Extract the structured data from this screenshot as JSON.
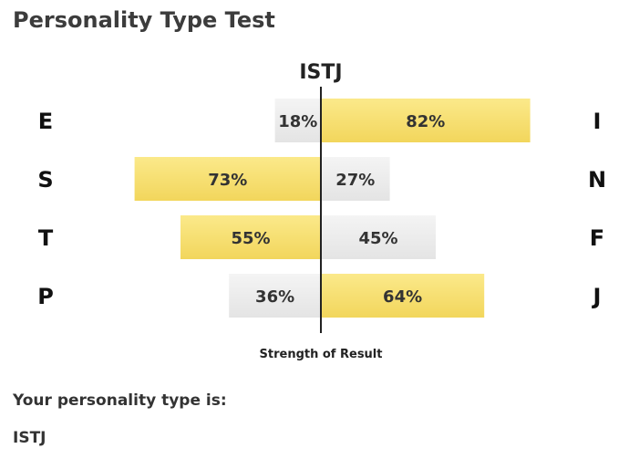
{
  "page": {
    "title": "Personality Type Test"
  },
  "chart_data": {
    "type": "bar",
    "title": "ISTJ",
    "xlabel": "Strength of Result",
    "xlim": [
      -100,
      100
    ],
    "grid": false,
    "colors": {
      "dominant": "#f7e073",
      "secondary": "#ececec",
      "axis": "#222222"
    },
    "rows": [
      {
        "left_letter": "E",
        "right_letter": "I",
        "left_value": 18,
        "right_value": 82,
        "left_label": "18%",
        "right_label": "82%",
        "dominant": "right"
      },
      {
        "left_letter": "S",
        "right_letter": "N",
        "left_value": 73,
        "right_value": 27,
        "left_label": "73%",
        "right_label": "27%",
        "dominant": "left"
      },
      {
        "left_letter": "T",
        "right_letter": "F",
        "left_value": 55,
        "right_value": 45,
        "left_label": "55%",
        "right_label": "45%",
        "dominant": "left"
      },
      {
        "left_letter": "P",
        "right_letter": "J",
        "left_value": 36,
        "right_value": 64,
        "left_label": "36%",
        "right_label": "64%",
        "dominant": "right"
      }
    ]
  },
  "result": {
    "label": "Your personality type is:",
    "type": "ISTJ"
  }
}
